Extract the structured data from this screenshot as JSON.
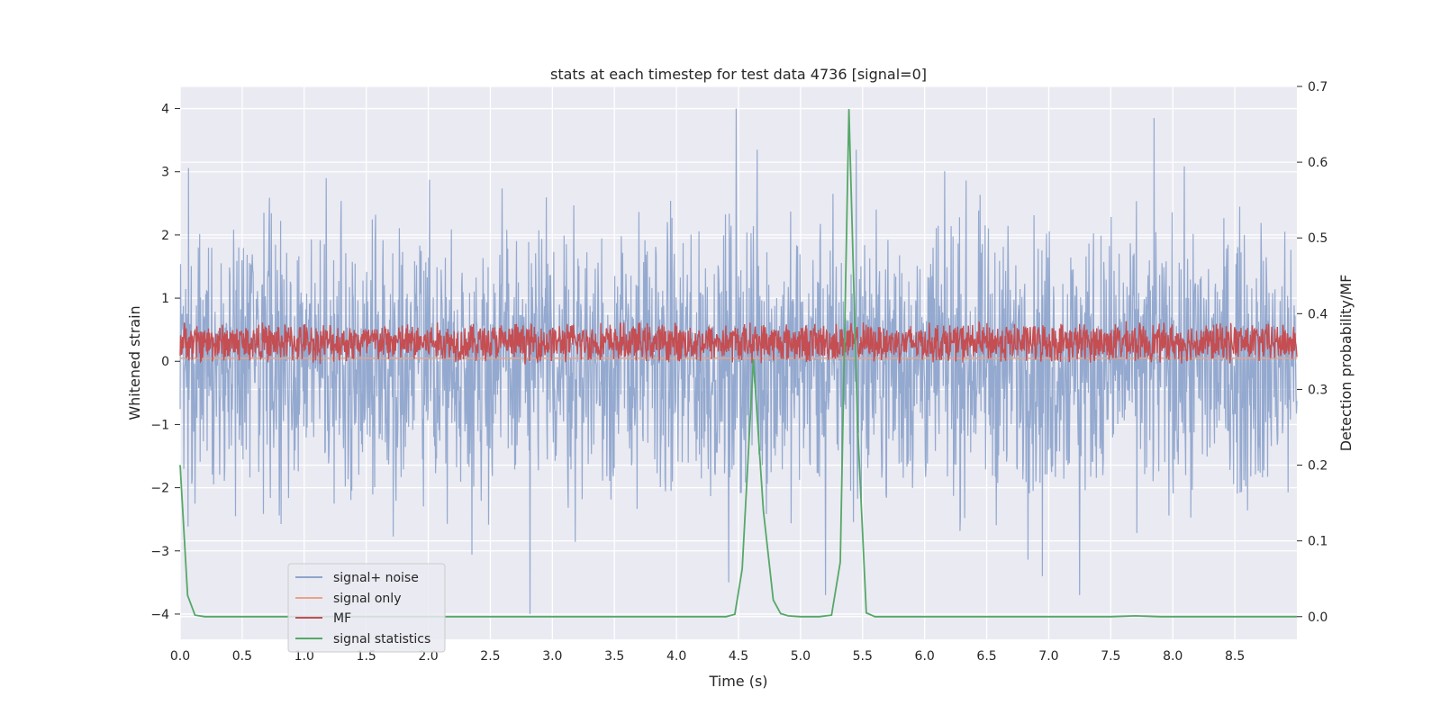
{
  "chart_data": {
    "type": "line",
    "title": "stats at each timestep for test data 4736 [signal=0]",
    "xlabel": "Time (s)",
    "ylabel_left": "Whitened strain",
    "ylabel_right": "Detection probability/MF",
    "xlim": [
      0.0,
      9.0
    ],
    "ylim_left": [
      -4.4,
      4.35
    ],
    "ylim_right": [
      -0.03,
      0.7
    ],
    "x_ticks": [
      0.0,
      0.5,
      1.0,
      1.5,
      2.0,
      2.5,
      3.0,
      3.5,
      4.0,
      4.5,
      5.0,
      5.5,
      6.0,
      6.5,
      7.0,
      7.5,
      8.0,
      8.5
    ],
    "x_tick_labels": [
      "0.0",
      "0.5",
      "1.0",
      "1.5",
      "2.0",
      "2.5",
      "3.0",
      "3.5",
      "4.0",
      "4.5",
      "5.0",
      "5.5",
      "6.0",
      "6.5",
      "7.0",
      "7.5",
      "8.0",
      "8.5"
    ],
    "y_left_ticks": [
      -4,
      -3,
      -2,
      -1,
      0,
      1,
      2,
      3,
      4
    ],
    "y_left_tick_labels": [
      "−4",
      "−3",
      "−2",
      "−1",
      "0",
      "1",
      "2",
      "3",
      "4"
    ],
    "y_right_ticks": [
      0.0,
      0.1,
      0.2,
      0.3,
      0.4,
      0.5,
      0.6,
      0.7
    ],
    "y_right_tick_labels": [
      "0.0",
      "0.1",
      "0.2",
      "0.3",
      "0.4",
      "0.5",
      "0.6",
      "0.7"
    ],
    "grid": true,
    "legend_position": "lower-left",
    "series": [
      {
        "name": "signal+ noise",
        "axis": "left",
        "color": "#8fa5cc",
        "kind": "noise",
        "amplitude_range": [
          -4.0,
          4.0
        ],
        "spikes": [
          {
            "x": 4.48,
            "y": 4.0
          },
          {
            "x": 4.65,
            "y": 3.35
          },
          {
            "x": 7.85,
            "y": 3.85
          },
          {
            "x": 5.45,
            "y": 3.35
          },
          {
            "x": 2.82,
            "y": -4.0
          },
          {
            "x": 4.42,
            "y": -3.5
          },
          {
            "x": 5.2,
            "y": -3.7
          },
          {
            "x": 6.95,
            "y": -3.4
          },
          {
            "x": 7.25,
            "y": -3.7
          }
        ]
      },
      {
        "name": "signal only",
        "axis": "left",
        "color": "#e8a48a",
        "kind": "flat",
        "value": 0.05
      },
      {
        "name": "MF",
        "axis": "left",
        "color": "#c44e52",
        "kind": "band",
        "center": 0.3,
        "spread": 0.35
      },
      {
        "name": "signal statistics",
        "axis": "right",
        "color": "#55a868",
        "kind": "line",
        "x": [
          0.0,
          0.06,
          0.12,
          0.2,
          0.3,
          0.5,
          1.0,
          2.0,
          3.0,
          4.0,
          4.4,
          4.47,
          4.53,
          4.62,
          4.7,
          4.78,
          4.84,
          4.9,
          5.0,
          5.15,
          5.25,
          5.32,
          5.39,
          5.46,
          5.53,
          5.6,
          5.8,
          6.5,
          7.0,
          7.5,
          7.7,
          7.9,
          8.5,
          9.0
        ],
        "y": [
          0.2,
          0.028,
          0.002,
          0.0,
          0.0,
          0.0,
          0.0,
          0.0,
          0.0,
          0.0,
          0.0,
          0.003,
          0.063,
          0.34,
          0.14,
          0.022,
          0.004,
          0.001,
          0.0,
          0.0,
          0.002,
          0.072,
          0.67,
          0.25,
          0.005,
          0.0,
          0.0,
          0.0,
          0.0,
          0.0,
          0.001,
          0.0,
          0.0,
          0.0
        ]
      }
    ]
  }
}
